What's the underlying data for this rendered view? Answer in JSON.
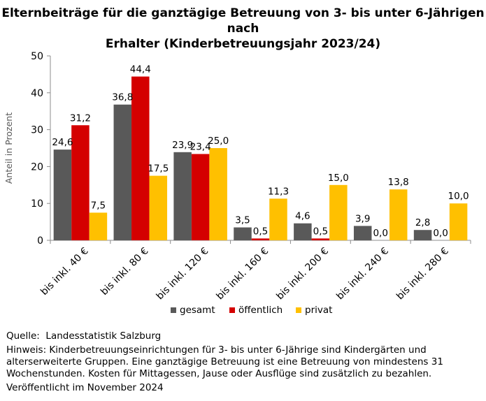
{
  "chart_data": {
    "type": "bar",
    "title_lines": [
      "Elternbeiträge für die ganztägige Betreuung von 3- bis unter 6-Jährigen nach",
      "Erhalter (Kinderbetreuungsjahr 2023/24)"
    ],
    "ylabel": "Anteil in Prozent",
    "xlabel": "",
    "ylim": [
      0,
      50
    ],
    "yticks": [
      "0",
      "10",
      "20",
      "30",
      "40",
      "50"
    ],
    "categories": [
      "bis inkl. 40 €",
      "bis inkl. 80 €",
      "bis inkl. 120 €",
      "bis inkl. 160 €",
      "bis inkl. 200 €",
      "bis inkl. 240 €",
      "bis inkl. 280 €"
    ],
    "series": [
      {
        "name": "gesamt",
        "color": "#595959",
        "values": [
          24.6,
          36.8,
          23.9,
          3.5,
          4.6,
          3.9,
          2.8
        ],
        "labels": [
          "24,6",
          "36,8",
          "23,9",
          "3,5",
          "4,6",
          "3,9",
          "2,8"
        ]
      },
      {
        "name": "öffentlich",
        "color": "#d40000",
        "values": [
          31.2,
          44.4,
          23.4,
          0.5,
          0.5,
          0.0,
          0.0
        ],
        "labels": [
          "31,2",
          "44,4",
          "23,4",
          "0,5",
          "0,5",
          "0,0",
          "0,0"
        ]
      },
      {
        "name": "privat",
        "color": "#ffc000",
        "values": [
          7.5,
          17.5,
          25.0,
          11.3,
          15.0,
          13.8,
          10.0
        ],
        "labels": [
          "7,5",
          "17,5",
          "25,0",
          "11,3",
          "15,0",
          "13,8",
          "10,0"
        ]
      }
    ],
    "grid": false,
    "legend_position": "bottom"
  },
  "notes": {
    "source": "Quelle:  Landesstatistik Salzburg",
    "hint": "Hinweis: Kinderbetreuungseinrichtungen für 3- bis unter 6-Jährige sind Kindergärten und alterserweiterte Gruppen. Eine ganztägige Betreuung ist eine Betreuung von mindestens 31 Wochenstunden. Kosten für Mittagessen, Jause oder Ausflüge sind zusätzlich zu bezahlen.",
    "published": "Veröffentlicht im November 2024"
  }
}
